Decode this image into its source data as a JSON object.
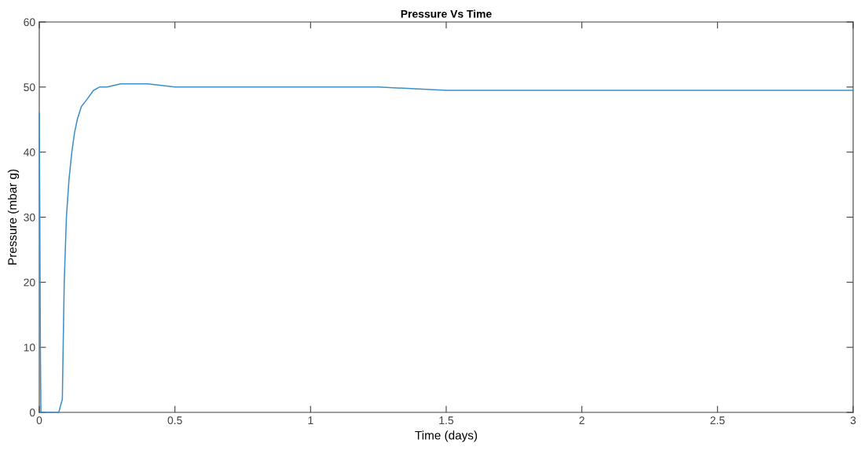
{
  "chart_data": {
    "type": "line",
    "title": "Pressure Vs Time",
    "xlabel": "Time (days)",
    "ylabel": "Pressure (mbar g)",
    "series": [
      {
        "color": "#3d8fc8",
        "x": [
          0,
          0.002,
          0.004,
          0.006,
          0.03,
          0.072,
          0.078,
          0.085,
          0.088,
          0.092,
          0.1,
          0.11,
          0.12,
          0.13,
          0.14,
          0.155,
          0.174,
          0.2,
          0.222,
          0.25,
          0.3,
          0.4,
          0.5,
          0.75,
          1,
          1.25,
          1.5,
          1.75,
          2,
          2.25,
          2.5,
          2.75,
          3
        ],
        "values": [
          46,
          30,
          10,
          0,
          0,
          0,
          1,
          2,
          10,
          20,
          30,
          36,
          40,
          43,
          45,
          47,
          48,
          49.5,
          50,
          50,
          50.5,
          50.5,
          50,
          50,
          50,
          50,
          49.5,
          49.5,
          49.5,
          49.5,
          49.5,
          49.5,
          49.5
        ]
      }
    ],
    "xlim": [
      0,
      3
    ],
    "ylim": [
      0,
      60
    ],
    "xticks": [
      0,
      0.5,
      1,
      1.5,
      2,
      2.5,
      3
    ],
    "yticks": [
      0,
      10,
      20,
      30,
      40,
      50,
      60
    ],
    "grid": false,
    "legend": false,
    "marker": "none",
    "line_style": "solid"
  }
}
